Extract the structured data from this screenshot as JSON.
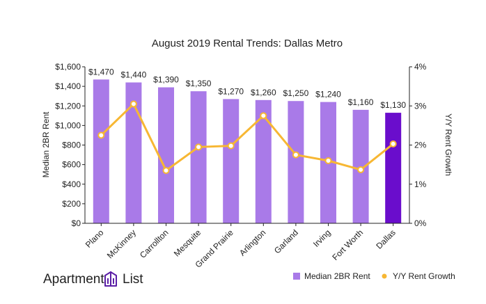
{
  "brand": {
    "left": "Apartment",
    "right": "List"
  },
  "chart_data": {
    "type": "bar",
    "title": "August 2019 Rental Trends: Dallas Metro",
    "xlabel": "",
    "ylabel": "Median 2BR Rent",
    "y2label": "Y/Y Rent Growth",
    "categories": [
      "Plano",
      "McKinney",
      "Carrollton",
      "Mesquite",
      "Grand Prairie",
      "Arlington",
      "Garland",
      "Irving",
      "Fort Worth",
      "Dallas"
    ],
    "series": [
      {
        "name": "Median 2BR Rent",
        "type": "bar",
        "axis": "left",
        "values": [
          1470,
          1440,
          1390,
          1350,
          1270,
          1260,
          1250,
          1240,
          1160,
          1130
        ],
        "labels": [
          "$1,470",
          "$1,440",
          "$1,390",
          "$1,350",
          "$1,270",
          "$1,260",
          "$1,250",
          "$1,240",
          "$1,160",
          "$1,130"
        ]
      },
      {
        "name": "Y/Y Rent Growth",
        "type": "line",
        "axis": "right",
        "values": [
          2.25,
          3.05,
          1.35,
          1.95,
          1.98,
          2.75,
          1.75,
          1.6,
          1.37,
          2.03
        ]
      }
    ],
    "ylim": [
      0,
      1600
    ],
    "yticks": [
      "$0",
      "$200",
      "$400",
      "$600",
      "$800",
      "$1,000",
      "$1,200",
      "$1,400",
      "$1,600"
    ],
    "y2lim": [
      0,
      4
    ],
    "y2ticks": [
      "0%",
      "1%",
      "2%",
      "3%",
      "4%"
    ],
    "grid": false,
    "legend_position": "bottom-right",
    "colors": {
      "bar": "#a97ae8",
      "bar_highlight": "#6a0dcc",
      "line": "#f7b733",
      "marker_fill": "#ffffff",
      "axis": "#222222",
      "brand_icon": "#5b1fa6"
    }
  }
}
